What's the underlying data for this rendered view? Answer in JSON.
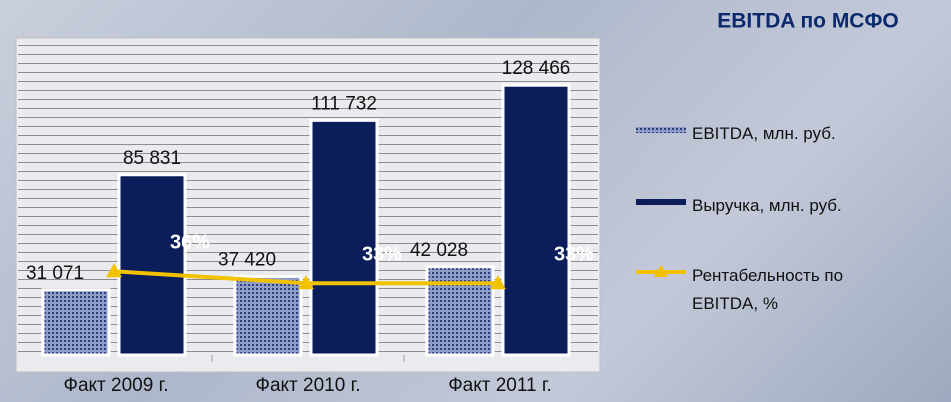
{
  "chart_data": {
    "type": "bar",
    "title": "EBITDA по МСФО",
    "categories": [
      "Факт 2009 г.",
      "Факт 2010 г.",
      "Факт 2011 г."
    ],
    "series": [
      {
        "name": "EBITDA, млн. руб.",
        "color": "#4b5d9c",
        "pattern": true,
        "values": [
          31071,
          37420,
          42028
        ],
        "value_labels": [
          "31 071",
          "37 420",
          "42 028"
        ]
      },
      {
        "name": "Выручка, млн. руб.",
        "color": "#0b1d5a",
        "values": [
          85831,
          111732,
          128466
        ],
        "value_labels": [
          "85 831",
          "111 732",
          "128 466"
        ]
      },
      {
        "name": "Рентабельность по EBITDA, %",
        "color": "#f2c200",
        "type": "line",
        "axis": "y2",
        "values": [
          36,
          33,
          33
        ],
        "value_labels": [
          "36%",
          "33%",
          "33%"
        ]
      }
    ],
    "ylim": [
      0,
      150000
    ],
    "y2lim": [
      15,
      94
    ],
    "grid": true
  }
}
